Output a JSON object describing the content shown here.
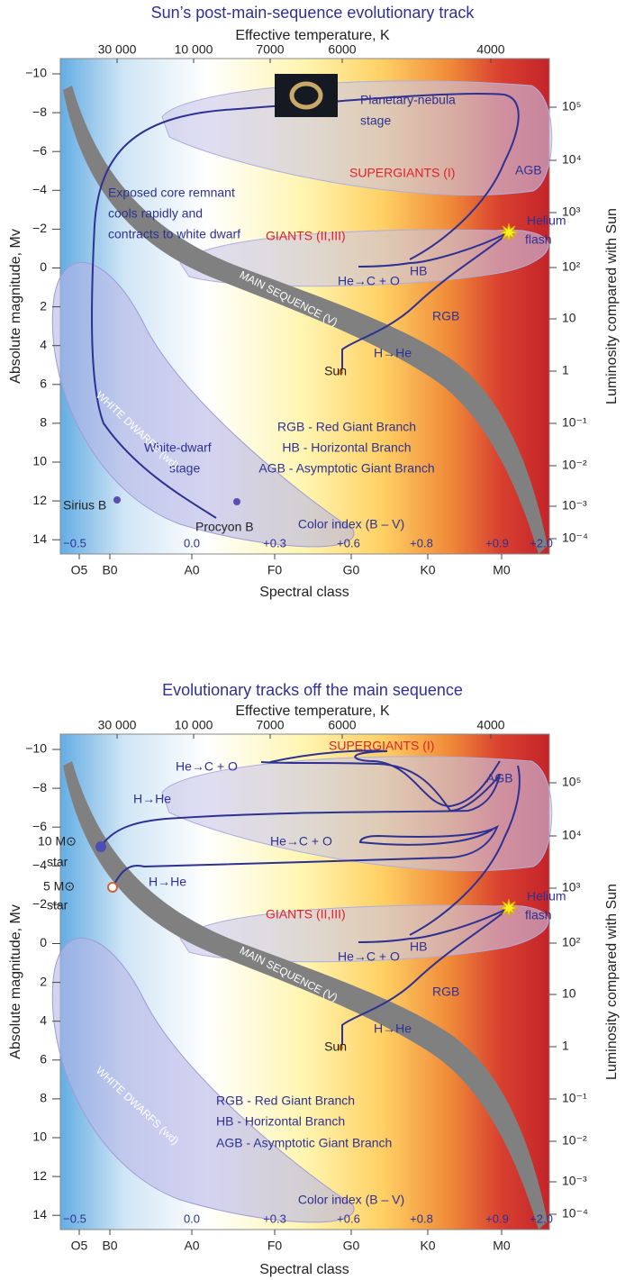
{
  "panels": [
    {
      "title": "Sun’s post-main-sequence evolutionary track",
      "top_axis_label": "Effective temperature, K",
      "left_axis_label": "Absolute magnitude, Mv",
      "right_axis_label": "Luminosity compared with Sun",
      "bottom_axis_label": "Spectral class",
      "temperature_ticks": [
        "30 000",
        "10 000",
        "7000",
        "6000",
        "4000"
      ],
      "magnitude_ticks": [
        "−10",
        "−8",
        "−6",
        "−4",
        "−2",
        "0",
        "2",
        "4",
        "6",
        "8",
        "10",
        "12",
        "14"
      ],
      "luminosity_ticks": [
        "10⁵",
        "10⁴",
        "10³",
        "10²",
        "10",
        "1",
        "10⁻¹",
        "10⁻²",
        "10⁻³",
        "10⁻⁴"
      ],
      "spectral_classes": [
        "O5",
        "B0",
        "A0",
        "F0",
        "G0",
        "K0",
        "M0"
      ],
      "color_index_label": "Color index (B – V)",
      "color_index_ticks": [
        "−0.5",
        "0.0",
        "+0.3",
        "+0.6",
        "+0.8",
        "+0.9",
        "+2.0"
      ],
      "labels": [
        "Planetary-nebula",
        "stage",
        "SUPERGIANTS (I)",
        "AGB",
        "Exposed core remnant",
        "cools rapidly and",
        "contracts to white dwarf",
        "Helium",
        "flash",
        "GIANTS (II,III)",
        "HB",
        "He→C + O",
        "RGB",
        "H→He",
        "Sun",
        "MAIN SEQUENCE (V)",
        "RGB - Red Giant Branch",
        "HB - Horizontal Branch",
        "AGB - Asymptotic Giant Branch",
        "White-dwarf",
        "stage",
        "WHITE DWARFS (wd)",
        "Sirius B",
        "Procyon B"
      ]
    },
    {
      "title": "Evolutionary tracks off the main sequence",
      "top_axis_label": "Effective temperature, K",
      "left_axis_label": "Absolute magnitude, Mv",
      "right_axis_label": "Luminosity compared with Sun",
      "bottom_axis_label": "Spectral class",
      "temperature_ticks": [
        "30 000",
        "10 000",
        "7000",
        "6000",
        "4000"
      ],
      "magnitude_ticks": [
        "−10",
        "−8",
        "−6",
        "−4",
        "−2",
        "0",
        "2",
        "4",
        "6",
        "8",
        "10",
        "12",
        "14"
      ],
      "luminosity_ticks": [
        "10⁵",
        "10⁴",
        "10³",
        "10²",
        "10",
        "1",
        "10⁻¹",
        "10⁻²",
        "10⁻³",
        "10⁻⁴"
      ],
      "spectral_classes": [
        "O5",
        "B0",
        "A0",
        "F0",
        "G0",
        "K0",
        "M0"
      ],
      "color_index_label": "Color index (B – V)",
      "color_index_ticks": [
        "−0.5",
        "0.0",
        "+0.3",
        "+0.6",
        "+0.8",
        "+0.9",
        "+2.0"
      ],
      "labels": [
        "SUPERGIANTS (I)",
        "He→C + O",
        "AGB",
        "H→He",
        "10 M⊙",
        "star",
        "He→C + O",
        "5 M⊙",
        "star",
        "H→He",
        "Helium",
        "flash",
        "GIANTS (II,III)",
        "HB",
        "He→C + O",
        "RGB",
        "H→He",
        "Sun",
        "MAIN SEQUENCE (V)",
        "RGB - Red Giant Branch",
        "HB - Horizontal Branch",
        "AGB - Asymptotic Giant Branch",
        "WHITE DWARFS (wd)"
      ]
    }
  ]
}
